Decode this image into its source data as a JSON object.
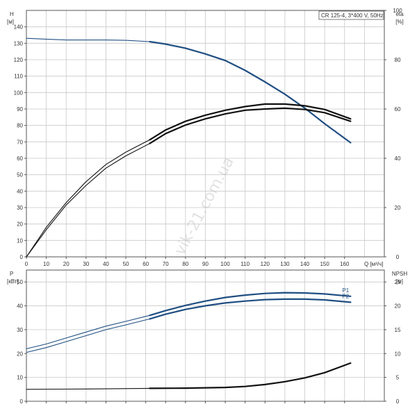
{
  "chart_data": [
    {
      "type": "line",
      "title": "CR 125-4, 3*400 V, 50Hz",
      "left_axis": {
        "label": "H",
        "unit": "[м]",
        "ylim": [
          0,
          150
        ],
        "ticks": [
          0,
          10,
          20,
          30,
          40,
          50,
          60,
          70,
          80,
          90,
          100,
          110,
          120,
          130,
          140
        ]
      },
      "right_axis": {
        "label": "eta",
        "unit": "[%]",
        "ylim": [
          0,
          100
        ],
        "ticks": [
          0,
          20,
          40,
          60,
          80,
          100
        ]
      },
      "x_axis": {
        "label": "Q",
        "unit": "[м³/ч]",
        "xlim": [
          0,
          180
        ],
        "ticks": [
          0,
          10,
          20,
          30,
          40,
          50,
          60,
          70,
          80,
          90,
          100,
          110,
          120,
          130,
          140,
          150,
          160
        ]
      },
      "grid": true,
      "operating_start_q": 62,
      "series": [
        {
          "axis": "left",
          "color": "#1f4e82",
          "x": [
            0,
            10,
            20,
            30,
            40,
            50,
            62,
            70,
            80,
            90,
            100,
            110,
            120,
            130,
            140,
            150,
            163
          ],
          "y": [
            133,
            132.5,
            132,
            132,
            132,
            131.8,
            131,
            129.5,
            127,
            123.5,
            119.5,
            113.5,
            106.5,
            99,
            90.5,
            81,
            69.5
          ]
        },
        {
          "axis": "right",
          "color": "#111111",
          "x": [
            0,
            10,
            20,
            30,
            40,
            50,
            62,
            70,
            80,
            90,
            100,
            110,
            120,
            130,
            140,
            150,
            163
          ],
          "y": [
            0,
            11,
            21,
            29,
            36,
            41,
            46,
            50,
            53.5,
            56,
            58,
            59.5,
            60,
            60.3,
            59.8,
            58.5,
            55
          ]
        },
        {
          "axis": "right",
          "color": "#111111",
          "x": [
            0,
            10,
            20,
            30,
            40,
            50,
            62,
            70,
            80,
            90,
            100,
            110,
            120,
            130,
            140,
            150,
            163
          ],
          "y": [
            0,
            12,
            22,
            30.5,
            37.5,
            42.5,
            47.5,
            51.5,
            55,
            57.5,
            59.5,
            61,
            62,
            62,
            61.3,
            59.8,
            56
          ]
        }
      ]
    },
    {
      "type": "line",
      "left_axis": {
        "label": "P",
        "unit": "[кВт]",
        "ylim": [
          0,
          55
        ],
        "ticks": [
          0,
          10,
          20,
          30,
          40,
          50
        ]
      },
      "right_axis": {
        "label": "NPSH",
        "unit": "[м]",
        "ylim": [
          0,
          27.5
        ],
        "ticks": [
          0,
          5,
          10,
          15,
          20,
          25
        ]
      },
      "x_axis": {
        "xlim": [
          0,
          180
        ]
      },
      "grid": true,
      "operating_start_q": 62,
      "series": [
        {
          "name": "P1",
          "axis": "left",
          "color": "#1f4e82",
          "x": [
            0,
            10,
            20,
            30,
            40,
            50,
            62,
            70,
            80,
            90,
            100,
            110,
            120,
            130,
            140,
            150,
            163
          ],
          "y": [
            22,
            24,
            26.5,
            29,
            31.5,
            33.5,
            36,
            38,
            40.2,
            42,
            43.5,
            44.5,
            45.2,
            45.5,
            45.4,
            45,
            44
          ]
        },
        {
          "name": "P2",
          "axis": "left",
          "color": "#1f4e82",
          "x": [
            0,
            10,
            20,
            30,
            40,
            50,
            62,
            70,
            80,
            90,
            100,
            110,
            120,
            130,
            140,
            150,
            163
          ],
          "y": [
            20.5,
            22.5,
            25,
            27.5,
            30,
            32,
            34.5,
            36.5,
            38.5,
            40,
            41.2,
            42,
            42.6,
            42.8,
            42.8,
            42.5,
            41.5
          ]
        },
        {
          "name": "",
          "axis": "right",
          "color": "#111111",
          "x": [
            0,
            20,
            40,
            62,
            80,
            100,
            110,
            120,
            130,
            140,
            150,
            163
          ],
          "y": [
            2.5,
            2.55,
            2.6,
            2.7,
            2.75,
            2.9,
            3.1,
            3.5,
            4.1,
            4.9,
            6,
            8
          ]
        }
      ]
    }
  ],
  "watermark": "vik-21.com.ua"
}
